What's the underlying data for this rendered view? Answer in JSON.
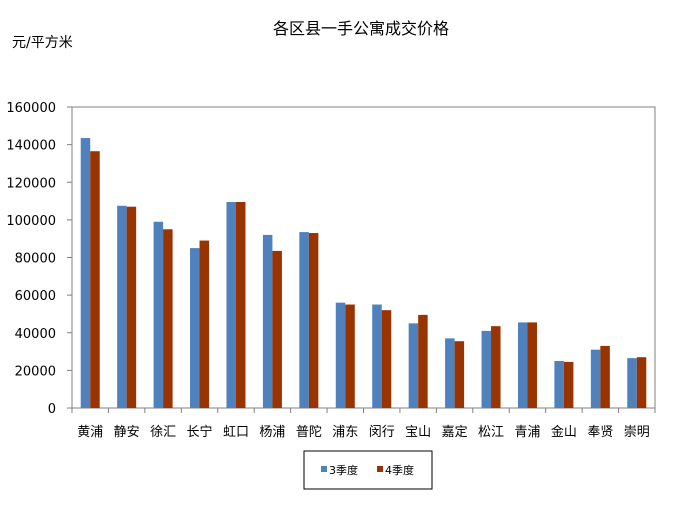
{
  "chart_data": {
    "type": "bar",
    "title": "各区县一手公寓成交价格",
    "ylabel": "元/平方米",
    "xlabel": "",
    "ylim": [
      0,
      160000
    ],
    "yticks": [
      0,
      20000,
      40000,
      60000,
      80000,
      100000,
      120000,
      140000,
      160000
    ],
    "grid": false,
    "legend_position": "bottom-center",
    "categories": [
      "黄浦",
      "静安",
      "徐汇",
      "长宁",
      "虹口",
      "杨浦",
      "普陀",
      "浦东",
      "闵行",
      "宝山",
      "嘉定",
      "松江",
      "青浦",
      "金山",
      "奉贤",
      "崇明"
    ],
    "series": [
      {
        "name": "3季度",
        "color": "#4F81BD",
        "values": [
          143500,
          107500,
          99000,
          85000,
          109500,
          92000,
          93500,
          56000,
          55000,
          45000,
          37000,
          41000,
          45500,
          25000,
          31000,
          26500
        ]
      },
      {
        "name": "4季度",
        "color": "#993300",
        "values": [
          136500,
          107000,
          95000,
          89000,
          109500,
          83500,
          93000,
          55000,
          52000,
          49500,
          35500,
          43500,
          45500,
          24500,
          33000,
          27000
        ]
      }
    ]
  }
}
